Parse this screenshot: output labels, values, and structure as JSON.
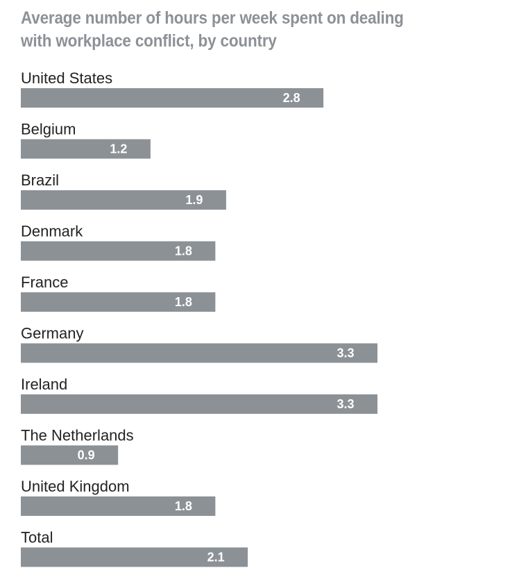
{
  "chart_data": {
    "type": "bar",
    "orientation": "horizontal",
    "title": "Average number of hours per week spent on dealing with workplace conflict, by country",
    "categories": [
      "United States",
      "Belgium",
      "Brazil",
      "Denmark",
      "France",
      "Germany",
      "Ireland",
      "The Netherlands",
      "United Kingdom",
      "Total"
    ],
    "values": [
      2.8,
      1.2,
      1.9,
      1.8,
      1.8,
      3.3,
      3.3,
      0.9,
      1.8,
      2.1
    ],
    "value_labels": [
      "2.8",
      "1.2",
      "1.9",
      "1.8",
      "1.8",
      "3.3",
      "3.3",
      "0.9",
      "1.8",
      "2.1"
    ],
    "xlim": [
      0,
      3.3
    ],
    "grid": false,
    "legend": "none"
  },
  "colors": {
    "bar": "#8c9196",
    "title": "#8c9196",
    "label": "#222222",
    "value_label": "#ffffff"
  }
}
